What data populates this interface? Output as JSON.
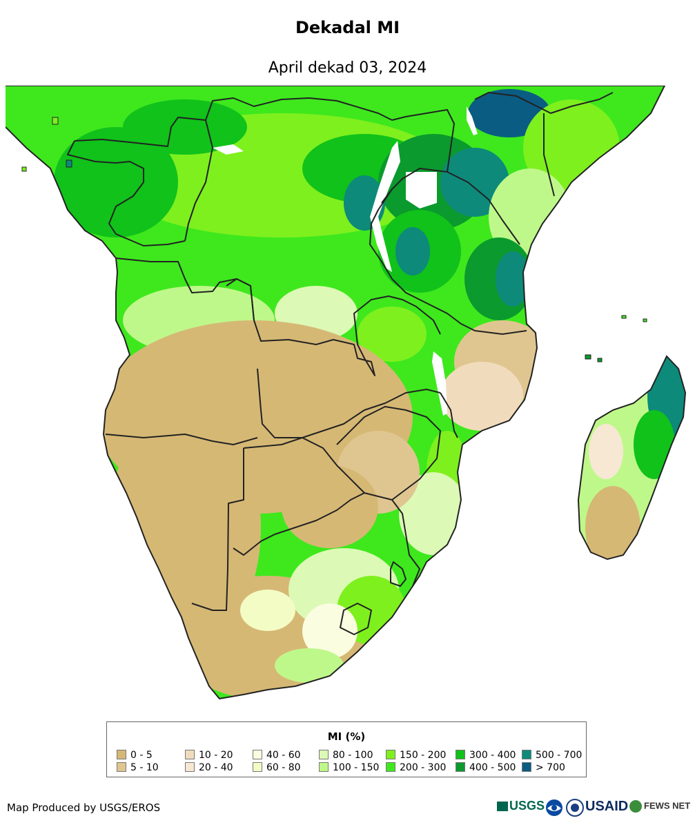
{
  "header": {
    "title": "Dekadal MI",
    "subtitle": "April dekad 03, 2024"
  },
  "legend": {
    "title": "MI (%)",
    "items": [
      {
        "label": "0 - 5",
        "color": "#d6b875"
      },
      {
        "label": "5 - 10",
        "color": "#dfc690"
      },
      {
        "label": "10 - 20",
        "color": "#f0dcbc"
      },
      {
        "label": "20 - 40",
        "color": "#f6e8d3"
      },
      {
        "label": "40 - 60",
        "color": "#fafde0"
      },
      {
        "label": "60 - 80",
        "color": "#f3fcc5"
      },
      {
        "label": "80 - 100",
        "color": "#dcf9b5"
      },
      {
        "label": "100 - 150",
        "color": "#bff88a"
      },
      {
        "label": "150 - 200",
        "color": "#7ef01e"
      },
      {
        "label": "200 - 300",
        "color": "#3ee81d"
      },
      {
        "label": "300 - 400",
        "color": "#10c21a"
      },
      {
        "label": "400 - 500",
        "color": "#0b9a2d"
      },
      {
        "label": "500 - 700",
        "color": "#0d8a7a"
      },
      {
        "label": "> 700",
        "color": "#0b5c82"
      }
    ]
  },
  "footer": {
    "credit": "Map Produced by USGS/EROS",
    "logos": [
      "USGS",
      "NOAA",
      "USAID",
      "FEWS NET"
    ]
  },
  "colors": {
    "border": "#222222",
    "water": "#ffffff"
  }
}
